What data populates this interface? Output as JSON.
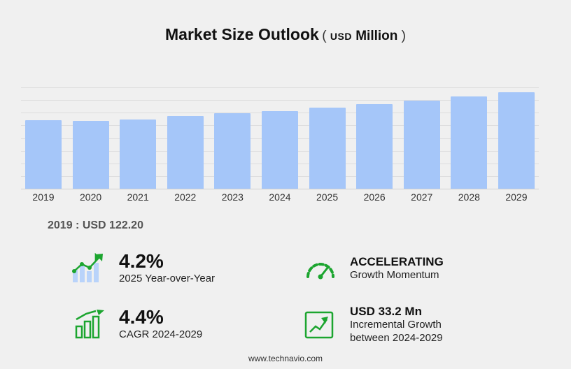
{
  "title": {
    "main": "Market Size Outlook",
    "paren_open": "(",
    "unit_currency": "USD",
    "unit_text": "Million",
    "paren_close": ")"
  },
  "chart_data": {
    "type": "bar",
    "categories": [
      "2019",
      "2020",
      "2021",
      "2022",
      "2023",
      "2024",
      "2025",
      "2026",
      "2027",
      "2028",
      "2029"
    ],
    "values": [
      122.2,
      120.0,
      123.5,
      128.5,
      133.5,
      138.2,
      144.0,
      150.1,
      156.9,
      163.7,
      171.4
    ],
    "title": "Market Size Outlook (USD Million)",
    "xlabel": "",
    "ylabel": "",
    "ylim": [
      0,
      180
    ],
    "grid": true,
    "gridline_count": 8,
    "bar_color": "#a5c6f9",
    "legend": "none"
  },
  "baseline_note": "2019 : USD  122.20",
  "stats": {
    "yoy": {
      "value": "4.2%",
      "label": "2025 Year-over-Year"
    },
    "momentum": {
      "title": "ACCELERATING",
      "label": "Growth Momentum"
    },
    "cagr": {
      "value": "4.4%",
      "label": "CAGR 2024-2029"
    },
    "incremental": {
      "value": "USD 33.2 Mn",
      "label_line1": "Incremental Growth",
      "label_line2": "between 2024-2029"
    }
  },
  "footer": {
    "url": "www.technavio.com"
  },
  "colors": {
    "accent_green": "#1ca52f",
    "bar_blue": "#a5c6f9",
    "background": "#f0f0f0"
  }
}
